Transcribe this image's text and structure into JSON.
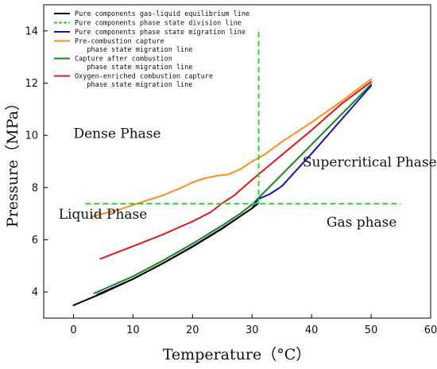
{
  "chart_data": {
    "type": "line",
    "xlabel": "Temperature（°C）",
    "ylabel": "Pressure（MPa）",
    "xlim": [
      -5,
      60
    ],
    "ylim": [
      3,
      15
    ],
    "xticks": [
      0,
      10,
      20,
      30,
      40,
      50,
      60
    ],
    "yticks": [
      4,
      6,
      8,
      10,
      12,
      14
    ],
    "grid": false,
    "legend_position": "top-left",
    "series": [
      {
        "name": "Pure components gas-liquid equilibrium line",
        "color": "#000000",
        "style": "solid",
        "x": [
          0,
          5,
          10,
          15,
          20,
          25,
          30,
          31
        ],
        "y": [
          3.49,
          3.97,
          4.5,
          5.09,
          5.73,
          6.43,
          7.21,
          7.38
        ]
      },
      {
        "name": "Pure components phase state division line",
        "color": "#1ed41e",
        "style": "dashed",
        "segments": [
          {
            "x": [
              2,
              55
            ],
            "y": [
              7.38,
              7.38
            ]
          },
          {
            "x": [
              31.1,
              31.1
            ],
            "y": [
              7.38,
              14.1
            ]
          }
        ]
      },
      {
        "name": "Pure components phase state migration line",
        "color": "#1010c8",
        "style": "solid",
        "x": [
          4,
          10,
          15,
          20,
          25,
          30,
          31,
          33,
          35,
          40,
          45,
          50
        ],
        "y": [
          3.9,
          4.5,
          5.1,
          5.75,
          6.45,
          7.2,
          7.55,
          7.75,
          8.05,
          9.3,
          10.6,
          11.9
        ]
      },
      {
        "name": "Pre-combustion capture\n   phase state migration line",
        "color": "#ff8c1a",
        "style": "solid",
        "x": [
          3,
          8,
          12,
          15,
          18,
          20,
          22,
          24,
          26,
          28,
          30,
          32,
          35,
          40,
          45,
          50
        ],
        "y": [
          6.88,
          7.18,
          7.48,
          7.7,
          7.98,
          8.2,
          8.35,
          8.45,
          8.5,
          8.7,
          9.0,
          9.25,
          9.75,
          10.5,
          11.3,
          12.15
        ]
      },
      {
        "name": "Capture after combustion\n   phase state migration line",
        "color": "#118a11",
        "style": "solid",
        "x": [
          3.5,
          10,
          15,
          20,
          25,
          28,
          30,
          35,
          40,
          45,
          50
        ],
        "y": [
          3.95,
          4.6,
          5.2,
          5.85,
          6.55,
          7.0,
          7.35,
          8.5,
          9.65,
          10.8,
          11.95
        ]
      },
      {
        "name": "Oxygen-enriched combustion capture\n   phase state migration line",
        "color": "#e81515",
        "style": "solid",
        "x": [
          4.5,
          10,
          15,
          20,
          23,
          25,
          27,
          30,
          35,
          40,
          45,
          50
        ],
        "y": [
          5.27,
          5.75,
          6.2,
          6.7,
          7.05,
          7.4,
          7.7,
          8.3,
          9.25,
          10.2,
          11.2,
          12.05
        ]
      }
    ],
    "annotations": [
      {
        "text": "Dense Phase",
        "x": 0,
        "y": 9.9
      },
      {
        "text": "Liquid Phase",
        "x": -2.5,
        "y": 6.8
      },
      {
        "text": "Supercritical Phase",
        "x": 38.5,
        "y": 8.8
      },
      {
        "text": "Gas phase",
        "x": 42.5,
        "y": 6.5
      }
    ]
  }
}
